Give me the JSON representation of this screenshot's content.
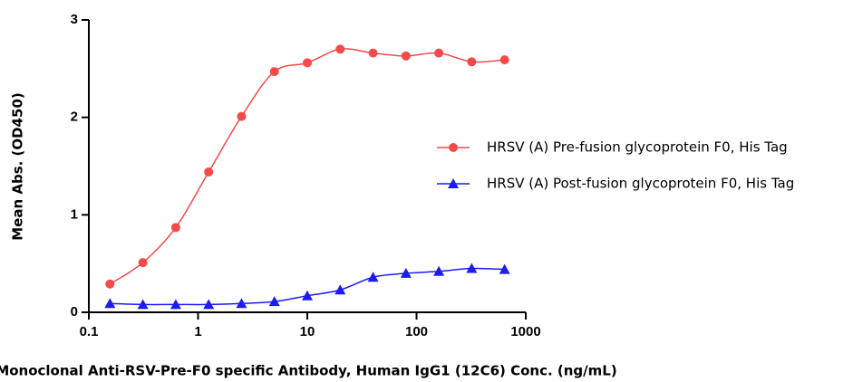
{
  "chart_data": {
    "type": "line",
    "y_label": "Mean Abs. (OD450)",
    "x_label": "Monoclonal Anti-RSV-Pre-F0 specific Antibody, Human IgG1 (12C6) Conc. (ng/mL)",
    "x": [
      0.156,
      0.3125,
      0.625,
      1.25,
      2.5,
      5,
      10,
      20,
      40,
      80,
      160,
      320,
      640
    ],
    "series": [
      {
        "name": "HRSV (A) Pre-fusion glycoprotein F0, His Tag",
        "color": "#f44a4a",
        "marker": "circle",
        "values": [
          0.29,
          0.51,
          0.87,
          1.44,
          2.01,
          2.47,
          2.56,
          2.7,
          2.66,
          2.63,
          2.66,
          2.57,
          2.59
        ]
      },
      {
        "name": "HRSV (A) Post-fusion glycoprotein F0, His Tag",
        "color": "#1c1cf0",
        "marker": "triangle",
        "values": [
          0.09,
          0.08,
          0.08,
          0.08,
          0.09,
          0.11,
          0.17,
          0.23,
          0.36,
          0.4,
          0.42,
          0.45,
          0.44
        ]
      }
    ],
    "xscale": "log",
    "xlim": [
      0.1,
      1000
    ],
    "xticks": [
      0.1,
      1,
      10,
      100,
      1000
    ],
    "ylim": [
      0,
      3
    ],
    "yticks": [
      0,
      1,
      2,
      3
    ]
  }
}
